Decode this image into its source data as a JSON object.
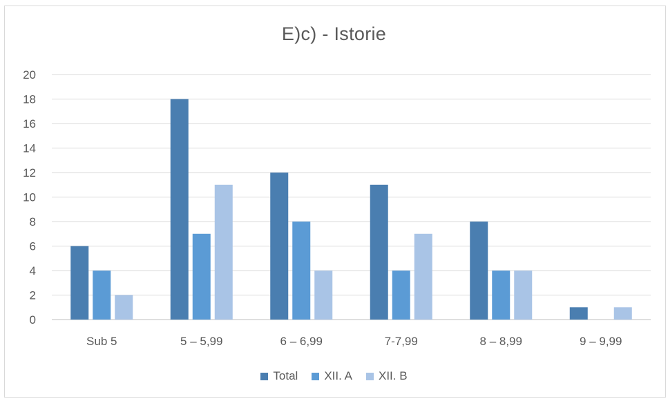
{
  "chart_data": {
    "type": "bar",
    "title": "E)c) - Istorie",
    "categories": [
      "Sub 5",
      "5 – 5,99",
      "6 – 6,99",
      "7-7,99",
      "8 – 8,99",
      "9 – 9,99"
    ],
    "series": [
      {
        "name": "Total",
        "color": "#4a7eb0",
        "values": [
          6,
          18,
          12,
          11,
          8,
          1
        ]
      },
      {
        "name": "XII. A",
        "color": "#5b9bd5",
        "values": [
          4,
          7,
          8,
          4,
          4,
          0
        ]
      },
      {
        "name": "XII. B",
        "color": "#a9c4e6",
        "values": [
          2,
          11,
          4,
          7,
          4,
          1
        ]
      }
    ],
    "ylim": [
      0,
      20
    ],
    "yticks": [
      0,
      2,
      4,
      6,
      8,
      10,
      12,
      14,
      16,
      18,
      20
    ],
    "xlabel": "",
    "ylabel": "",
    "grid": true,
    "legend_position": "bottom"
  }
}
